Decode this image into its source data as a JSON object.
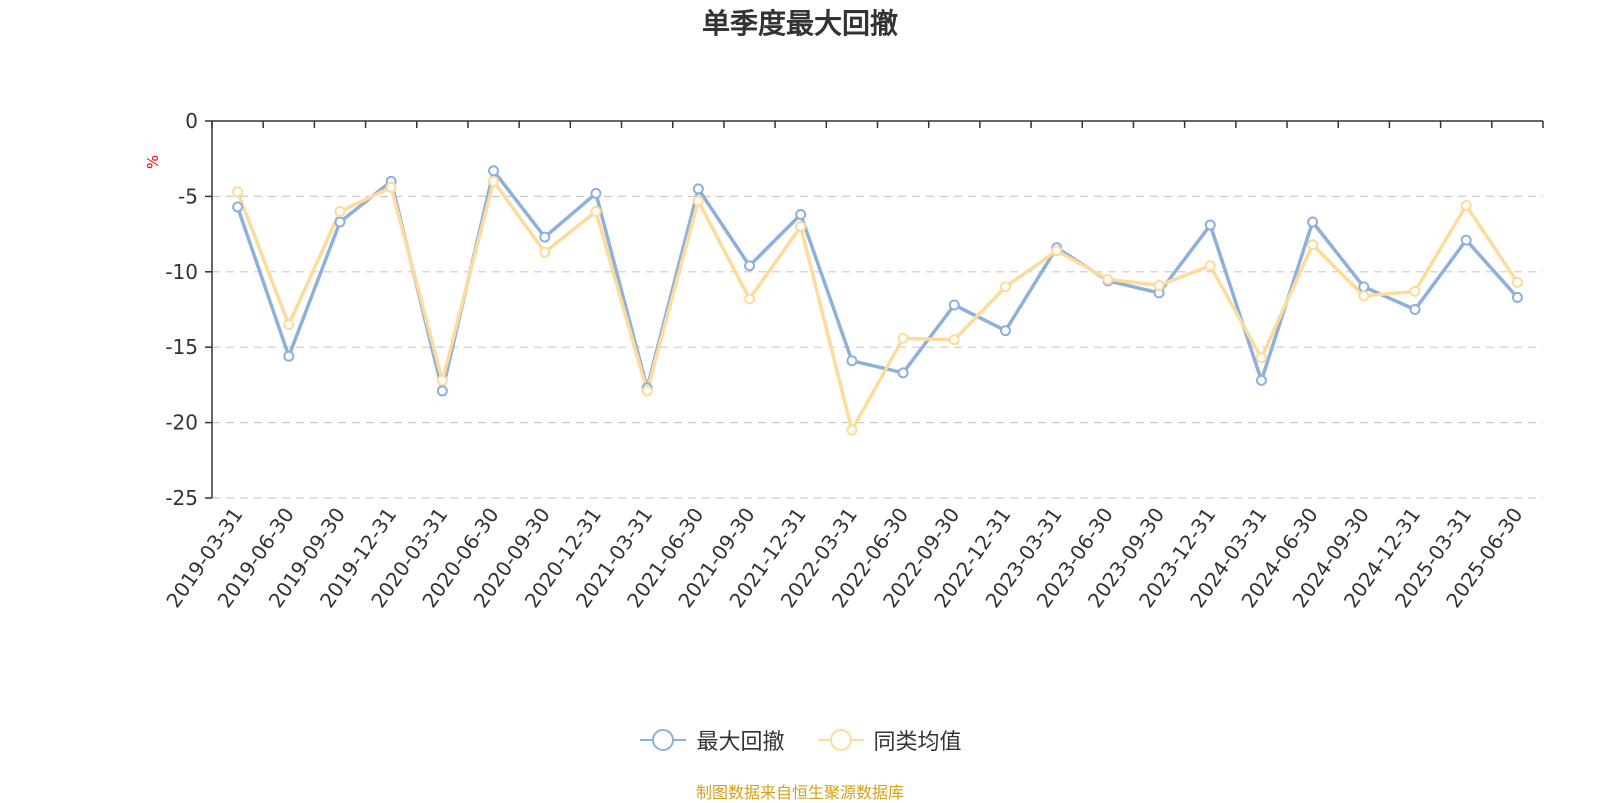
{
  "chart_data": {
    "type": "line",
    "title": "单季度最大回撤",
    "ylabel": "%",
    "ylim": [
      -25,
      0
    ],
    "yticks": [
      0,
      -5,
      -10,
      -15,
      -20,
      -25
    ],
    "grid": true,
    "legend_position": "bottom",
    "categories": [
      "2019-03-31",
      "2019-06-30",
      "2019-09-30",
      "2019-12-31",
      "2020-03-31",
      "2020-06-30",
      "2020-09-30",
      "2020-12-31",
      "2021-03-31",
      "2021-06-30",
      "2021-09-30",
      "2021-12-31",
      "2022-03-31",
      "2022-06-30",
      "2022-09-30",
      "2022-12-31",
      "2023-03-31",
      "2023-06-30",
      "2023-09-30",
      "2023-12-31",
      "2024-03-31",
      "2024-06-30",
      "2024-09-30",
      "2024-12-31",
      "2025-03-31",
      "2025-06-30"
    ],
    "series": [
      {
        "name": "最大回撤",
        "color": "#8eb0dd",
        "values": [
          -5.7,
          -15.6,
          -6.7,
          -4.0,
          -17.9,
          -3.3,
          -7.7,
          -4.8,
          -17.7,
          -4.5,
          -9.6,
          -6.2,
          -15.9,
          -16.7,
          -12.2,
          -13.9,
          -8.4,
          -10.6,
          -11.4,
          -6.9,
          -17.2,
          -6.7,
          -11.0,
          -12.5,
          -7.9,
          -11.7
        ]
      },
      {
        "name": "同类均值",
        "color": "#fddb9a",
        "values": [
          -4.7,
          -13.5,
          -6.0,
          -4.4,
          -17.2,
          -4.0,
          -8.7,
          -6.0,
          -17.9,
          -5.3,
          -11.8,
          -7.0,
          -20.5,
          -14.4,
          -14.5,
          -11.0,
          -8.6,
          -10.5,
          -10.9,
          -9.6,
          -15.7,
          -8.2,
          -11.6,
          -11.3,
          -5.6,
          -10.7
        ]
      }
    ]
  },
  "colors": {
    "title": "#333333",
    "axis": "#333333",
    "grid": "#cccccc",
    "ylabel": "#ff0000",
    "source": "#d4a017"
  },
  "source_text": "制图数据来自恒生聚源数据库"
}
